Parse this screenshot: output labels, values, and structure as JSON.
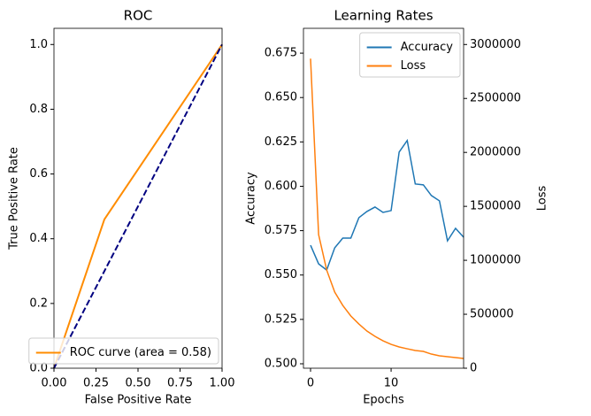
{
  "chart_data": [
    {
      "type": "line",
      "title": "ROC",
      "xlabel": "False Positive Rate",
      "ylabel": "True Positive Rate",
      "xlim": [
        0,
        1
      ],
      "ylim": [
        0,
        1.05
      ],
      "xticks": [
        {
          "value": 0,
          "label": "0.00"
        },
        {
          "value": 0.25,
          "label": "0.25"
        },
        {
          "value": 0.5,
          "label": "0.50"
        },
        {
          "value": 0.75,
          "label": "0.75"
        },
        {
          "value": 1,
          "label": "1.00"
        }
      ],
      "yticks": [
        {
          "value": 0,
          "label": "0.0"
        },
        {
          "value": 0.2,
          "label": "0.2"
        },
        {
          "value": 0.4,
          "label": "0.4"
        },
        {
          "value": 0.6,
          "label": "0.6"
        },
        {
          "value": 0.8,
          "label": "0.8"
        },
        {
          "value": 1,
          "label": "1.0"
        }
      ],
      "legend": "lower right",
      "series": [
        {
          "name": "ROC curve (area = 0.58)",
          "color": "#ff8c00",
          "linestyle": "solid",
          "x": [
            0,
            0.3,
            1
          ],
          "values": [
            0,
            0.46,
            1
          ]
        },
        {
          "color": "#000080",
          "linestyle": "dashed",
          "x": [
            0,
            1
          ],
          "values": [
            0,
            1
          ]
        }
      ]
    },
    {
      "type": "line",
      "title": "Learning Rates",
      "xlabel": "Epochs",
      "ylabel": "Accuracy",
      "y2label": "Loss",
      "xlim": [
        -0.88,
        19
      ],
      "ylim": [
        0.4975,
        0.689
      ],
      "y2lim": [
        0,
        3150000
      ],
      "xticks": [
        0,
        10
      ],
      "yticks": [
        {
          "value": 0.5,
          "label": "0.500"
        },
        {
          "value": 0.525,
          "label": "0.525"
        },
        {
          "value": 0.55,
          "label": "0.550"
        },
        {
          "value": 0.575,
          "label": "0.575"
        },
        {
          "value": 0.6,
          "label": "0.600"
        },
        {
          "value": 0.625,
          "label": "0.625"
        },
        {
          "value": 0.65,
          "label": "0.650"
        },
        {
          "value": 0.675,
          "label": "0.675"
        }
      ],
      "y2ticks": [
        0,
        500000,
        1000000,
        1500000,
        2000000,
        2500000,
        3000000
      ],
      "legend": "upper right",
      "series": [
        {
          "name": "Accuracy",
          "color": "#1f77b4",
          "linestyle": "solid",
          "x": [
            0,
            1,
            2,
            3,
            4,
            5,
            6,
            7,
            8,
            9,
            10,
            11,
            12,
            13,
            14,
            15,
            16,
            17,
            18,
            19
          ],
          "values": [
            0.5668,
            0.5563,
            0.5528,
            0.5653,
            0.5708,
            0.5708,
            0.5823,
            0.5858,
            0.5883,
            0.5853,
            0.5863,
            0.6193,
            0.6258,
            0.6013,
            0.6008,
            0.5948,
            0.5918,
            0.5693,
            0.5763,
            0.5713
          ]
        },
        {
          "name": "Loss",
          "color": "#ff7f0e",
          "linestyle": "solid",
          "axis": "y2",
          "x": [
            0,
            1,
            2,
            3,
            4,
            5,
            6,
            7,
            8,
            9,
            10,
            11,
            12,
            13,
            14,
            15,
            16,
            17,
            18,
            19
          ],
          "values": [
            2869000,
            1238000,
            910000,
            705000,
            582000,
            484000,
            410000,
            344000,
            295000,
            254000,
            221000,
            197000,
            180000,
            164000,
            156000,
            131000,
            115000,
            107000,
            98000,
            90000
          ]
        }
      ]
    }
  ]
}
